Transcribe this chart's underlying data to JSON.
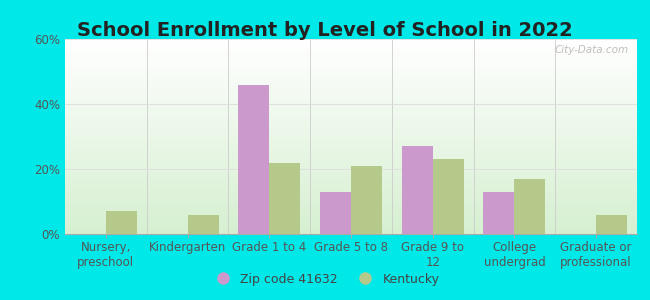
{
  "title": "School Enrollment by Level of School in 2022",
  "categories": [
    "Nursery,\npreschool",
    "Kindergarten",
    "Grade 1 to 4",
    "Grade 5 to 8",
    "Grade 9 to\n12",
    "College\nundergrad",
    "Graduate or\nprofessional"
  ],
  "zip_values": [
    0,
    0,
    46,
    13,
    27,
    13,
    0
  ],
  "ky_values": [
    7,
    6,
    22,
    21,
    23,
    17,
    6
  ],
  "zip_color": "#cc99cc",
  "ky_color": "#b5c98a",
  "background_outer": "#00e8e8",
  "ylim": [
    0,
    60
  ],
  "yticks": [
    0,
    20,
    40,
    60
  ],
  "title_fontsize": 14,
  "tick_fontsize": 8.5,
  "legend_label_zip": "Zip code 41632",
  "legend_label_ky": "Kentucky",
  "watermark": "City-Data.com",
  "bar_width": 0.38
}
